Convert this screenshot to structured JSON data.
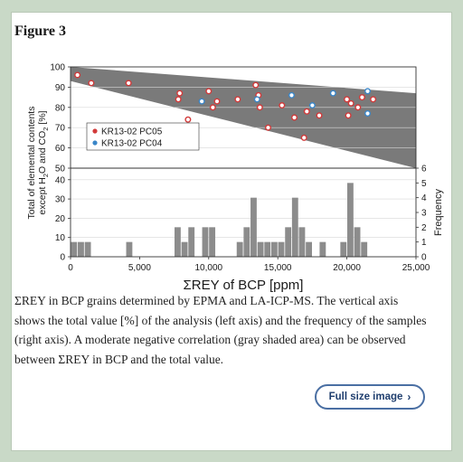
{
  "figure_title": "Figure 3",
  "caption": "ΣREY in BCP grains determined by EPMA and LA-ICP-MS. The vertical axis shows the total value [%] of the analysis (left axis) and the frequency of the samples (right axis). A moderate negative correlation (gray shaded area) can be observed between ΣREY in BCP and the total value.",
  "button": {
    "label": "Full size image"
  },
  "colors": {
    "pc05": "#d23a3a",
    "pc04": "#3a86c8",
    "shade": "#7a7a7a",
    "bars": "#8c8c8c"
  },
  "chart_data": [
    {
      "type": "scatter",
      "ylabel": "Total of elemental contents except H2O and CO2 [%]",
      "yticks": [
        "100",
        "90",
        "80",
        "70",
        "60",
        "50"
      ],
      "ylim": [
        50,
        100
      ],
      "xlim": [
        0,
        25000
      ],
      "legend_position": "top-left",
      "shaded_band": {
        "upper": [
          [
            0,
            100
          ],
          [
            25000,
            87
          ]
        ],
        "lower": [
          [
            0,
            93
          ],
          [
            25000,
            50
          ]
        ]
      },
      "series": [
        {
          "name": "KR13-02 PC05",
          "color": "#d23a3a",
          "points": [
            [
              500,
              96
            ],
            [
              1500,
              92
            ],
            [
              4200,
              92
            ],
            [
              7900,
              87
            ],
            [
              7800,
              84
            ],
            [
              8500,
              74
            ],
            [
              10000,
              88
            ],
            [
              10300,
              80
            ],
            [
              10600,
              83
            ],
            [
              12100,
              84
            ],
            [
              13400,
              91
            ],
            [
              13600,
              86
            ],
            [
              13700,
              80
            ],
            [
              14300,
              70
            ],
            [
              15300,
              81
            ],
            [
              16200,
              75
            ],
            [
              16900,
              65
            ],
            [
              17100,
              78
            ],
            [
              18000,
              76
            ],
            [
              20000,
              84
            ],
            [
              20100,
              76
            ],
            [
              20300,
              82
            ],
            [
              20800,
              80
            ],
            [
              21100,
              85
            ],
            [
              21900,
              84
            ]
          ]
        },
        {
          "name": "KR13-02 PC04",
          "color": "#3a86c8",
          "points": [
            [
              9500,
              83
            ],
            [
              13500,
              84
            ],
            [
              16000,
              86
            ],
            [
              17500,
              81
            ],
            [
              19000,
              87
            ],
            [
              21500,
              88
            ],
            [
              21500,
              77
            ]
          ]
        }
      ]
    },
    {
      "type": "bar",
      "ylabel_right": "Frequency",
      "xlabel": "ΣREY of BCP [ppm]",
      "xticks": [
        "0",
        "5,000",
        "10,000",
        "15,000",
        "20,000",
        "25,000"
      ],
      "yticks_left": [
        "40",
        "30",
        "20",
        "10",
        "0"
      ],
      "yticks_right": [
        "6",
        "5",
        "4",
        "3",
        "2",
        "1",
        "0"
      ],
      "ylim_left": [
        0,
        46
      ],
      "ylim_right": [
        0,
        6
      ],
      "xlim": [
        0,
        25000
      ],
      "bin_width": 500,
      "bins": [
        [
          0,
          1
        ],
        [
          500,
          1
        ],
        [
          1000,
          1
        ],
        [
          4000,
          1
        ],
        [
          7500,
          2
        ],
        [
          8000,
          1
        ],
        [
          8500,
          2
        ],
        [
          9500,
          2
        ],
        [
          10000,
          2
        ],
        [
          12000,
          1
        ],
        [
          12500,
          2
        ],
        [
          13000,
          4
        ],
        [
          13500,
          1
        ],
        [
          14000,
          1
        ],
        [
          14500,
          1
        ],
        [
          15000,
          1
        ],
        [
          15500,
          2
        ],
        [
          16000,
          4
        ],
        [
          16500,
          2
        ],
        [
          17000,
          1
        ],
        [
          18000,
          1
        ],
        [
          19500,
          1
        ],
        [
          20000,
          5
        ],
        [
          20500,
          2
        ],
        [
          21000,
          1
        ]
      ]
    }
  ]
}
